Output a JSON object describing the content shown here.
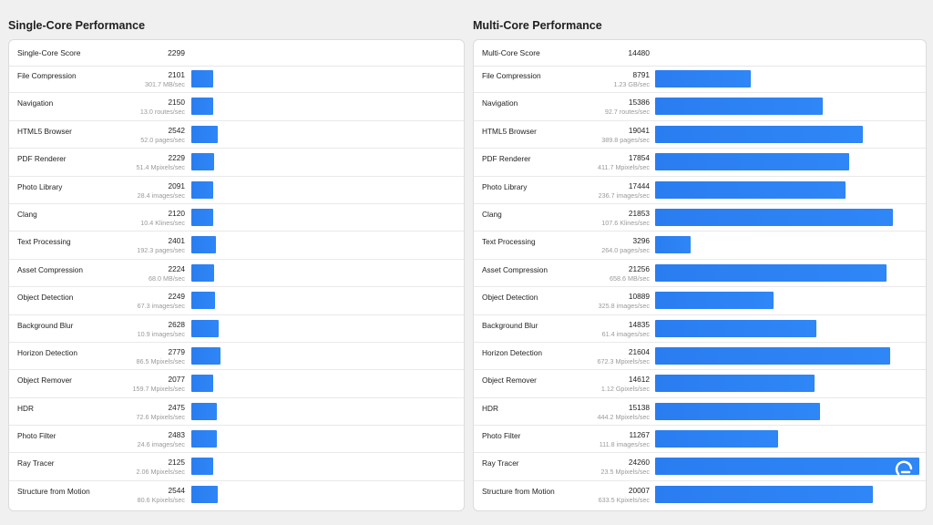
{
  "single": {
    "title": "Single-Core Performance",
    "score_label": "Single-Core Score",
    "score_value": "2299",
    "max_scale": 2900,
    "rows": [
      {
        "name": "File Compression",
        "score": "2101",
        "rate": "301.7 MB/sec",
        "value": 2101
      },
      {
        "name": "Navigation",
        "score": "2150",
        "rate": "13.0 routes/sec",
        "value": 2150
      },
      {
        "name": "HTML5 Browser",
        "score": "2542",
        "rate": "52.0 pages/sec",
        "value": 2542
      },
      {
        "name": "PDF Renderer",
        "score": "2229",
        "rate": "51.4 Mpixels/sec",
        "value": 2229
      },
      {
        "name": "Photo Library",
        "score": "2091",
        "rate": "28.4 images/sec",
        "value": 2091
      },
      {
        "name": "Clang",
        "score": "2120",
        "rate": "10.4 Klines/sec",
        "value": 2120
      },
      {
        "name": "Text Processing",
        "score": "2401",
        "rate": "192.3 pages/sec",
        "value": 2401
      },
      {
        "name": "Asset Compression",
        "score": "2224",
        "rate": "68.0 MB/sec",
        "value": 2224
      },
      {
        "name": "Object Detection",
        "score": "2249",
        "rate": "67.3 images/sec",
        "value": 2249
      },
      {
        "name": "Background Blur",
        "score": "2628",
        "rate": "10.9 images/sec",
        "value": 2628
      },
      {
        "name": "Horizon Detection",
        "score": "2779",
        "rate": "86.5 Mpixels/sec",
        "value": 2779
      },
      {
        "name": "Object Remover",
        "score": "2077",
        "rate": "159.7 Mpixels/sec",
        "value": 2077
      },
      {
        "name": "HDR",
        "score": "2475",
        "rate": "72.6 Mpixels/sec",
        "value": 2475
      },
      {
        "name": "Photo Filter",
        "score": "2483",
        "rate": "24.6 images/sec",
        "value": 2483
      },
      {
        "name": "Ray Tracer",
        "score": "2125",
        "rate": "2.06 Mpixels/sec",
        "value": 2125
      },
      {
        "name": "Structure from Motion",
        "score": "2544",
        "rate": "80.6 Kpixels/sec",
        "value": 2544
      }
    ]
  },
  "multi": {
    "title": "Multi-Core Performance",
    "score_label": "Multi-Core Score",
    "score_value": "14480",
    "max_scale": 24260,
    "rows": [
      {
        "name": "File Compression",
        "score": "8791",
        "rate": "1.23 GB/sec",
        "value": 8791
      },
      {
        "name": "Navigation",
        "score": "15386",
        "rate": "92.7 routes/sec",
        "value": 15386
      },
      {
        "name": "HTML5 Browser",
        "score": "19041",
        "rate": "389.8 pages/sec",
        "value": 19041
      },
      {
        "name": "PDF Renderer",
        "score": "17854",
        "rate": "411.7 Mpixels/sec",
        "value": 17854
      },
      {
        "name": "Photo Library",
        "score": "17444",
        "rate": "236.7 images/sec",
        "value": 17444
      },
      {
        "name": "Clang",
        "score": "21853",
        "rate": "107.6 Klines/sec",
        "value": 21853
      },
      {
        "name": "Text Processing",
        "score": "3296",
        "rate": "264.0 pages/sec",
        "value": 3296
      },
      {
        "name": "Asset Compression",
        "score": "21256",
        "rate": "658.6 MB/sec",
        "value": 21256
      },
      {
        "name": "Object Detection",
        "score": "10889",
        "rate": "325.8 images/sec",
        "value": 10889
      },
      {
        "name": "Background Blur",
        "score": "14835",
        "rate": "61.4 images/sec",
        "value": 14835
      },
      {
        "name": "Horizon Detection",
        "score": "21604",
        "rate": "672.3 Mpixels/sec",
        "value": 21604
      },
      {
        "name": "Object Remover",
        "score": "14612",
        "rate": "1.12 Gpixels/sec",
        "value": 14612
      },
      {
        "name": "HDR",
        "score": "15138",
        "rate": "444.2 Mpixels/sec",
        "value": 15138
      },
      {
        "name": "Photo Filter",
        "score": "11267",
        "rate": "111.8 images/sec",
        "value": 11267
      },
      {
        "name": "Ray Tracer",
        "score": "24260",
        "rate": "23.5 Mpixels/sec",
        "value": 24260
      },
      {
        "name": "Structure from Motion",
        "score": "20007",
        "rate": "633.5 Kpixels/sec",
        "value": 20007
      }
    ]
  },
  "colors": {
    "bar": "#2f86f6",
    "background": "#f0f0f1",
    "panel": "#ffffff"
  },
  "icons": {
    "corner": "watermark-icon"
  }
}
